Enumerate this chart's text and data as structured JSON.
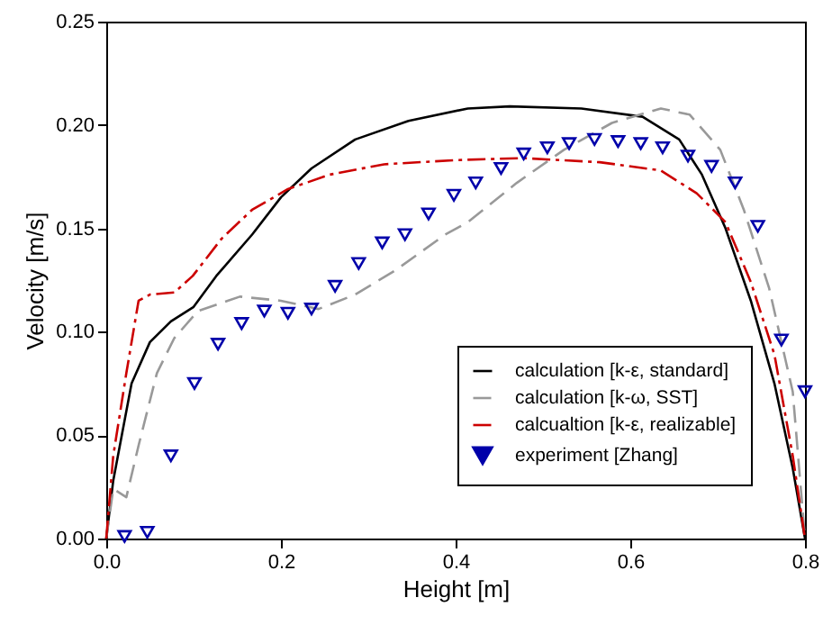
{
  "chart_data": {
    "type": "line",
    "xlabel": "Height [m]",
    "ylabel": "Velocity [m/s]",
    "xlim": [
      0,
      0.8
    ],
    "ylim": [
      0,
      0.25
    ],
    "xticks": [
      {
        "value": 0,
        "label": "0.0"
      },
      {
        "value": 0.2,
        "label": "0.2"
      },
      {
        "value": 0.4,
        "label": "0.4"
      },
      {
        "value": 0.6,
        "label": "0.6"
      },
      {
        "value": 0.8,
        "label": "0.8"
      }
    ],
    "yticks": [
      {
        "value": 0,
        "label": "0.00"
      },
      {
        "value": 0.05,
        "label": "0.05"
      },
      {
        "value": 0.1,
        "label": "0.10"
      },
      {
        "value": 0.15,
        "label": "0.15"
      },
      {
        "value": 0.2,
        "label": "0.20"
      },
      {
        "value": 0.25,
        "label": "0.25"
      }
    ],
    "grid": false,
    "legend": "bottom right",
    "series": [
      {
        "name": "calculation [k-ε, standard]",
        "color": "#000000",
        "type": "line",
        "line_style": "solid",
        "x": [
          0,
          0.008,
          0.029,
          0.05,
          0.074,
          0.1,
          0.126,
          0.167,
          0.2,
          0.235,
          0.285,
          0.346,
          0.414,
          0.462,
          0.544,
          0.614,
          0.656,
          0.682,
          0.709,
          0.738,
          0.765,
          0.786,
          0.8
        ],
        "values": [
          0,
          0.028,
          0.075,
          0.095,
          0.105,
          0.112,
          0.127,
          0.147,
          0.165,
          0.179,
          0.193,
          0.202,
          0.208,
          0.209,
          0.208,
          0.204,
          0.193,
          0.176,
          0.15,
          0.115,
          0.075,
          0.034,
          0
        ]
      },
      {
        "name": "calculation [k-ω, SST]",
        "color": "#999999",
        "type": "line",
        "line_style": "dashed",
        "x": [
          0,
          0.008,
          0.023,
          0.037,
          0.058,
          0.078,
          0.105,
          0.153,
          0.2,
          0.243,
          0.285,
          0.332,
          0.388,
          0.414,
          0.47,
          0.524,
          0.579,
          0.635,
          0.668,
          0.703,
          0.73,
          0.759,
          0.786,
          0.8
        ],
        "values": [
          0,
          0.024,
          0.02,
          0.045,
          0.08,
          0.097,
          0.11,
          0.117,
          0.115,
          0.111,
          0.118,
          0.13,
          0.147,
          0.153,
          0.172,
          0.188,
          0.201,
          0.208,
          0.205,
          0.188,
          0.159,
          0.121,
          0.071,
          0
        ]
      },
      {
        "name": "calcualtion [k-ε, realizable]",
        "color": "#cc0000",
        "type": "line",
        "line_style": "dashdot",
        "x": [
          0,
          0.008,
          0.023,
          0.037,
          0.05,
          0.078,
          0.099,
          0.132,
          0.167,
          0.208,
          0.256,
          0.318,
          0.4,
          0.476,
          0.565,
          0.635,
          0.676,
          0.709,
          0.738,
          0.765,
          0.786,
          0.8
        ],
        "values": [
          0,
          0.04,
          0.08,
          0.115,
          0.118,
          0.119,
          0.127,
          0.145,
          0.159,
          0.169,
          0.176,
          0.181,
          0.183,
          0.184,
          0.182,
          0.178,
          0.167,
          0.153,
          0.124,
          0.089,
          0.04,
          0
        ]
      },
      {
        "name": "experiment [Zhang]",
        "color": "#0000aa",
        "type": "scatter",
        "marker": "triangle",
        "x": [
          0.021,
          0.047,
          0.074,
          0.101,
          0.128,
          0.155,
          0.181,
          0.208,
          0.235,
          0.262,
          0.289,
          0.316,
          0.342,
          0.369,
          0.398,
          0.423,
          0.452,
          0.478,
          0.505,
          0.53,
          0.559,
          0.586,
          0.612,
          0.637,
          0.666,
          0.693,
          0.72,
          0.746,
          0.773,
          0.8
        ],
        "values": [
          0.001,
          0.003,
          0.04,
          0.075,
          0.094,
          0.104,
          0.11,
          0.109,
          0.111,
          0.122,
          0.133,
          0.143,
          0.147,
          0.157,
          0.166,
          0.172,
          0.179,
          0.186,
          0.189,
          0.191,
          0.193,
          0.192,
          0.191,
          0.189,
          0.185,
          0.18,
          0.172,
          0.151,
          0.096,
          0.071
        ]
      }
    ]
  }
}
